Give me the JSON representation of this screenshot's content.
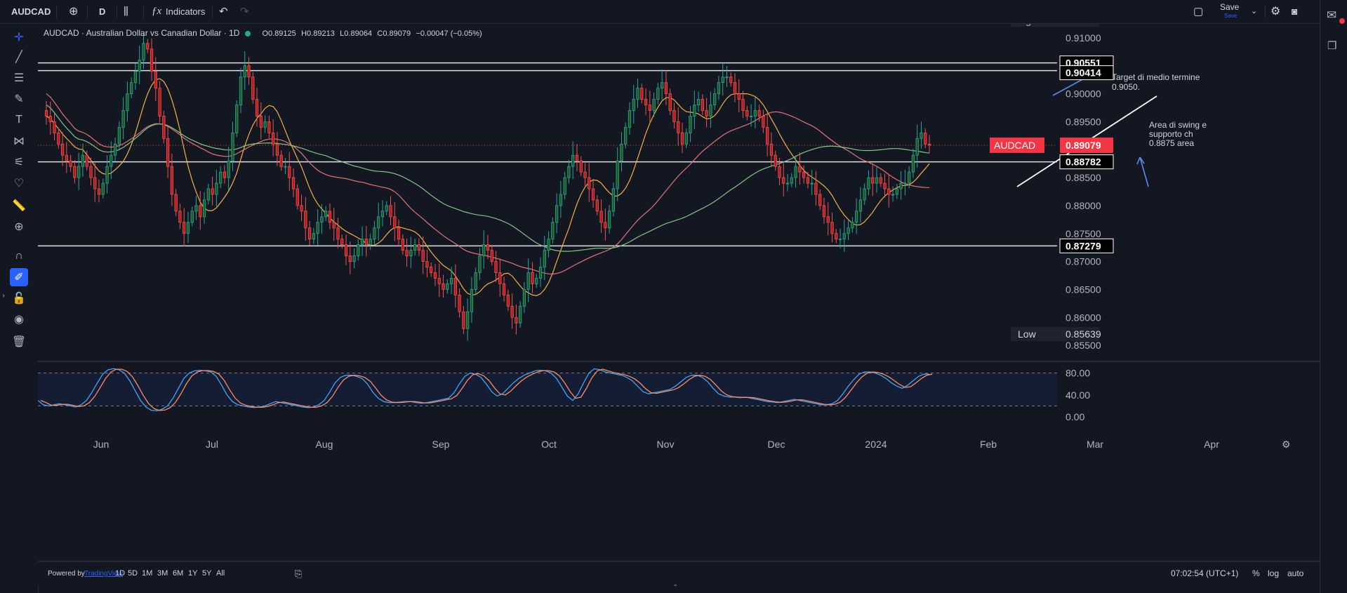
{
  "topbar": {
    "symbol": "AUDCAD",
    "interval": "D",
    "indicators_label": "Indicators",
    "save_label": "Save",
    "save_sub": "Save"
  },
  "legend": {
    "title": "AUDCAD · Australian Dollar vs Canadian Dollar · 1D",
    "open": "O0.89125",
    "high": "H0.89213",
    "low": "L0.89064",
    "close": "C0.89079",
    "change": "−0.00047 (−0.05%)"
  },
  "price_axis": {
    "ticks": [
      "0.91000",
      "0.90500",
      "0.90000",
      "0.89500",
      "0.88500",
      "0.88000",
      "0.87500",
      "0.87000",
      "0.86500",
      "0.86000",
      "0.85500"
    ],
    "high_label": "High",
    "high_value": "0.91165",
    "low_label": "Low",
    "low_value": "0.85639",
    "level_labels": [
      "0.90551",
      "0.90414",
      "0.88782",
      "0.87279"
    ],
    "current_symbol": "AUDCAD",
    "current_price": "0.89079"
  },
  "time_axis": [
    "Jun",
    "Jul",
    "Aug",
    "Sep",
    "Oct",
    "Nov",
    "Dec",
    "2024",
    "Feb",
    "Mar",
    "Apr"
  ],
  "stoch_axis": [
    "80.00",
    "40.00",
    "0.00"
  ],
  "annotations": {
    "target_line1": "Target di medio termine",
    "target_line2": "0.9050.",
    "swing_line1": "Area di swing e",
    "swing_line2": "supporto ch",
    "swing_line3": "0.8875 area"
  },
  "bottombar": {
    "powered_by": "Powered by",
    "powered_link": "TradingView",
    "ranges": [
      "1D",
      "5D",
      "1M",
      "3M",
      "6M",
      "1Y",
      "5Y",
      "All"
    ],
    "clock": "07:02:54 (UTC+1)",
    "percent": "%",
    "log": "log",
    "auto": "auto"
  },
  "colors": {
    "up": "#26a69a",
    "up_body": "#1b5e20",
    "down": "#ef5350",
    "down_body": "#b71c1c",
    "ma_fast": "#f5b041",
    "ma_mid": "#e57373",
    "ma_slow": "#81c784",
    "stoch_k": "#42a5f5",
    "stoch_d": "#ff8a65",
    "accent": "#2962ff"
  },
  "chart_data": {
    "type": "candlestick",
    "ylim": [
      0.8525,
      0.9125
    ],
    "levels": [
      0.90551,
      0.90414,
      0.88782,
      0.87279
    ],
    "current": 0.89079,
    "high": 0.91165,
    "low": 0.85639,
    "closes": [
      0.896,
      0.895,
      0.893,
      0.891,
      0.889,
      0.888,
      0.887,
      0.885,
      0.887,
      0.889,
      0.887,
      0.885,
      0.883,
      0.882,
      0.884,
      0.887,
      0.889,
      0.891,
      0.894,
      0.897,
      0.9,
      0.902,
      0.904,
      0.906,
      0.909,
      0.908,
      0.904,
      0.901,
      0.896,
      0.892,
      0.887,
      0.882,
      0.879,
      0.877,
      0.875,
      0.877,
      0.879,
      0.88,
      0.878,
      0.881,
      0.883,
      0.882,
      0.884,
      0.886,
      0.885,
      0.888,
      0.893,
      0.898,
      0.903,
      0.905,
      0.903,
      0.899,
      0.896,
      0.894,
      0.895,
      0.893,
      0.891,
      0.889,
      0.887,
      0.887,
      0.885,
      0.883,
      0.88,
      0.879,
      0.876,
      0.874,
      0.875,
      0.877,
      0.878,
      0.879,
      0.877,
      0.876,
      0.874,
      0.873,
      0.871,
      0.87,
      0.871,
      0.873,
      0.874,
      0.873,
      0.874,
      0.876,
      0.878,
      0.879,
      0.88,
      0.878,
      0.876,
      0.874,
      0.872,
      0.871,
      0.872,
      0.873,
      0.872,
      0.87,
      0.869,
      0.868,
      0.867,
      0.866,
      0.865,
      0.866,
      0.867,
      0.864,
      0.861,
      0.858,
      0.861,
      0.865,
      0.868,
      0.871,
      0.873,
      0.872,
      0.87,
      0.868,
      0.866,
      0.864,
      0.862,
      0.86,
      0.859,
      0.862,
      0.865,
      0.868,
      0.866,
      0.867,
      0.869,
      0.872,
      0.874,
      0.877,
      0.88,
      0.882,
      0.885,
      0.887,
      0.889,
      0.888,
      0.886,
      0.885,
      0.883,
      0.881,
      0.879,
      0.877,
      0.876,
      0.879,
      0.883,
      0.888,
      0.891,
      0.894,
      0.897,
      0.899,
      0.901,
      0.899,
      0.898,
      0.897,
      0.899,
      0.901,
      0.902,
      0.9,
      0.897,
      0.895,
      0.893,
      0.891,
      0.893,
      0.896,
      0.898,
      0.899,
      0.897,
      0.896,
      0.898,
      0.9,
      0.902,
      0.903,
      0.903,
      0.902,
      0.9,
      0.899,
      0.897,
      0.896,
      0.896,
      0.897,
      0.896,
      0.894,
      0.891,
      0.889,
      0.887,
      0.885,
      0.884,
      0.884,
      0.885,
      0.887,
      0.886,
      0.885,
      0.884,
      0.884,
      0.882,
      0.88,
      0.878,
      0.877,
      0.875,
      0.874,
      0.874,
      0.875,
      0.876,
      0.877,
      0.879,
      0.881,
      0.883,
      0.885,
      0.884,
      0.885,
      0.884,
      0.883,
      0.882,
      0.882,
      0.883,
      0.884,
      0.884,
      0.886,
      0.889,
      0.892,
      0.893,
      0.891,
      0.8908
    ],
    "stoch": [
      30,
      22,
      20,
      22,
      24,
      22,
      20,
      18,
      22,
      30,
      45,
      62,
      78,
      86,
      88,
      86,
      80,
      66,
      48,
      30,
      18,
      12,
      11,
      14,
      20,
      34,
      52,
      70,
      80,
      84,
      85,
      84,
      82,
      74,
      58,
      40,
      28,
      22,
      20,
      18,
      17,
      18,
      20,
      24,
      28,
      26,
      24,
      22,
      20,
      18,
      17,
      18,
      22,
      30,
      45,
      62,
      72,
      76,
      76,
      74,
      70,
      60,
      45,
      34,
      28,
      26,
      26,
      27,
      28,
      28,
      26,
      25,
      26,
      28,
      30,
      32,
      34,
      44,
      60,
      74,
      80,
      78,
      72,
      60,
      46,
      38,
      42,
      52,
      62,
      70,
      76,
      80,
      84,
      85,
      84,
      80,
      70,
      54,
      38,
      30,
      42,
      62,
      80,
      88,
      86,
      82,
      80,
      78,
      76,
      72,
      66,
      56,
      46,
      42,
      44,
      46,
      48,
      50,
      56,
      64,
      72,
      76,
      76,
      72,
      64,
      52,
      42,
      38,
      36,
      36,
      35,
      36,
      34,
      32,
      30,
      28,
      27,
      26,
      28,
      30,
      32,
      30,
      28,
      26,
      24,
      22,
      22,
      24,
      30,
      42,
      56,
      68,
      78,
      82,
      82,
      80,
      76,
      70,
      62,
      56,
      52,
      58,
      66,
      74,
      78,
      78
    ]
  }
}
